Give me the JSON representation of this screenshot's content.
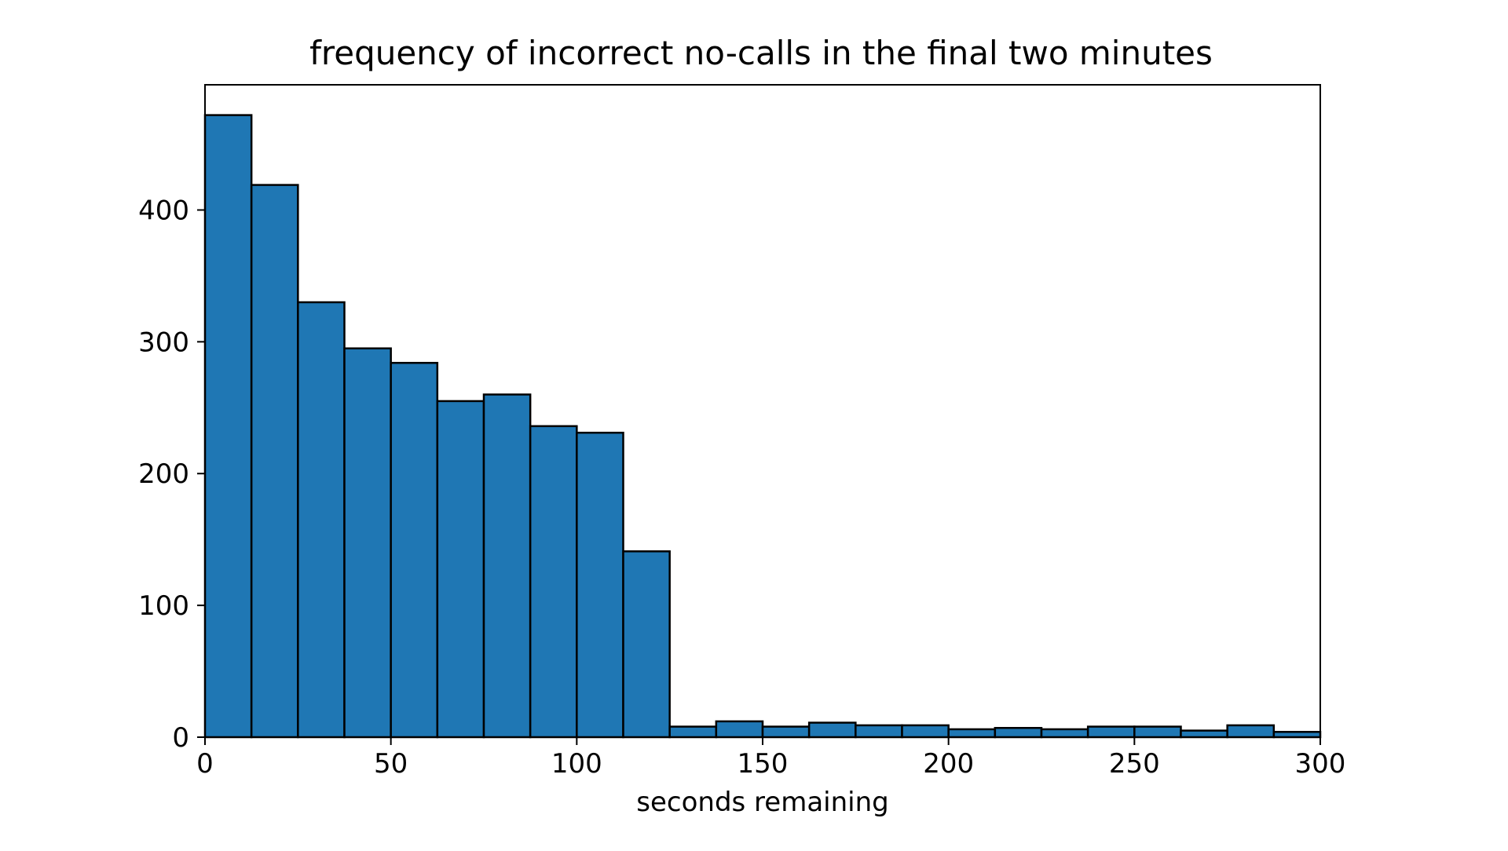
{
  "chart_data": {
    "type": "bar",
    "title": "frequency of incorrect no-calls in the final two minutes",
    "xlabel": "seconds remaining",
    "ylabel": "",
    "xlim": [
      0,
      300
    ],
    "ylim": [
      0,
      495
    ],
    "xticks": [
      0,
      50,
      100,
      150,
      200,
      250,
      300
    ],
    "yticks": [
      0,
      100,
      200,
      300,
      400
    ],
    "bin_width": 12.5,
    "bins": [
      {
        "x0": 0,
        "x1": 12.5,
        "value": 472
      },
      {
        "x0": 12.5,
        "x1": 25,
        "value": 419
      },
      {
        "x0": 25,
        "x1": 37.5,
        "value": 330
      },
      {
        "x0": 37.5,
        "x1": 50,
        "value": 295
      },
      {
        "x0": 50,
        "x1": 62.5,
        "value": 284
      },
      {
        "x0": 62.5,
        "x1": 75,
        "value": 255
      },
      {
        "x0": 75,
        "x1": 87.5,
        "value": 260
      },
      {
        "x0": 87.5,
        "x1": 100,
        "value": 236
      },
      {
        "x0": 100,
        "x1": 112.5,
        "value": 231
      },
      {
        "x0": 112.5,
        "x1": 125,
        "value": 141
      },
      {
        "x0": 125,
        "x1": 137.5,
        "value": 8
      },
      {
        "x0": 137.5,
        "x1": 150,
        "value": 12
      },
      {
        "x0": 150,
        "x1": 162.5,
        "value": 8
      },
      {
        "x0": 162.5,
        "x1": 175,
        "value": 11
      },
      {
        "x0": 175,
        "x1": 187.5,
        "value": 9
      },
      {
        "x0": 187.5,
        "x1": 200,
        "value": 9
      },
      {
        "x0": 200,
        "x1": 212.5,
        "value": 6
      },
      {
        "x0": 212.5,
        "x1": 225,
        "value": 7
      },
      {
        "x0": 225,
        "x1": 237.5,
        "value": 6
      },
      {
        "x0": 237.5,
        "x1": 250,
        "value": 8
      },
      {
        "x0": 250,
        "x1": 262.5,
        "value": 8
      },
      {
        "x0": 262.5,
        "x1": 275,
        "value": 5
      },
      {
        "x0": 275,
        "x1": 287.5,
        "value": 9
      },
      {
        "x0": 287.5,
        "x1": 300,
        "value": 4
      }
    ],
    "grid": false,
    "legend": "none",
    "bar_color": "#1f77b4",
    "edge_color": "#000000"
  }
}
